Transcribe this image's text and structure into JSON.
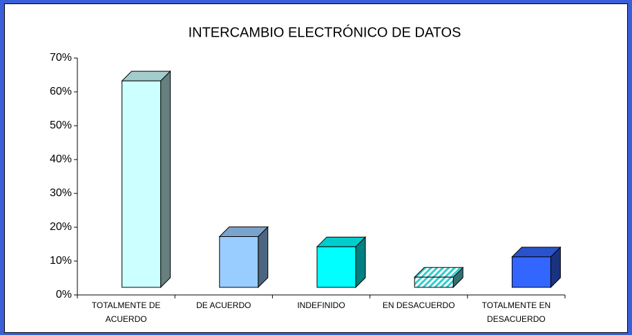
{
  "chart_data": {
    "type": "bar3d",
    "title": "INTERCAMBIO ELECTRÓNICO DE DATOS",
    "categories": [
      "TOTALMENTE DE ACUERDO",
      "DE ACUERDO",
      "INDEFINIDO",
      "EN DESACUERDO",
      "TOTALMENTE EN DESACUERDO"
    ],
    "values": [
      61,
      15,
      12,
      3,
      9
    ],
    "colors": [
      "#ccffff",
      "#99ccff",
      "#00ffff",
      "#66e0e8",
      "#3366ff"
    ],
    "hatched": [
      false,
      false,
      false,
      true,
      false
    ],
    "ylim": [
      0,
      70
    ],
    "yticks": [
      {
        "value": 0,
        "label": "0%"
      },
      {
        "value": 10,
        "label": "10%"
      },
      {
        "value": 20,
        "label": "20%"
      },
      {
        "value": 30,
        "label": "30%"
      },
      {
        "value": 40,
        "label": "40%"
      },
      {
        "value": 50,
        "label": "50%"
      },
      {
        "value": 60,
        "label": "60%"
      },
      {
        "value": 70,
        "label": "70%"
      }
    ],
    "grid": false
  }
}
